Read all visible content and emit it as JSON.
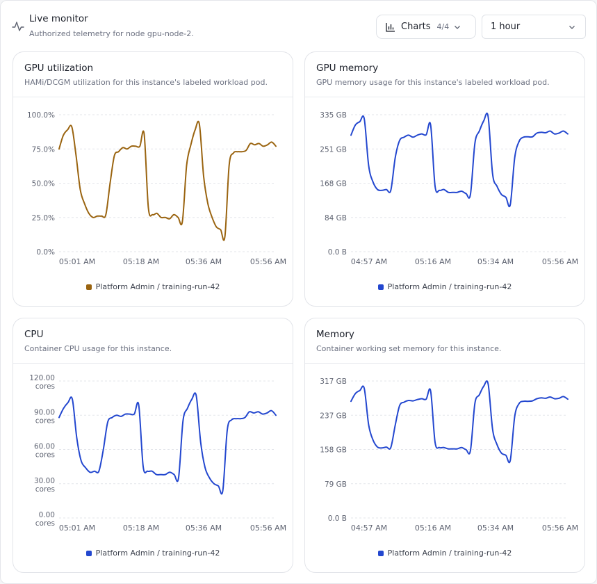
{
  "header": {
    "icon": "activity-icon",
    "title": "Live monitor",
    "subtitle": "Authorized telemetry for node gpu-node-2."
  },
  "toolbar": {
    "charts_label": "Charts",
    "charts_count": "4/4",
    "range_value": "1 hour"
  },
  "cards": [
    {
      "title": "GPU utilization",
      "description": "HAMi/DCGM utilization for this instance's labeled workload pod.",
      "color": "#9a6410",
      "legend": "Platform Admin / training-run-42",
      "chart_data": {
        "type": "line",
        "y_ticks": [
          [
            "100.0%"
          ],
          [
            "75.0%"
          ],
          [
            "50.0%"
          ],
          [
            "25.0%"
          ],
          [
            "0.0%"
          ]
        ],
        "x_ticks": [
          "05:01 AM",
          "05:18 AM",
          "05:36 AM",
          "05:56 AM"
        ],
        "ylim": [
          0,
          100
        ],
        "series": [
          {
            "name": "Platform Admin / training-run-42",
            "values": [
              75,
              85,
              89,
              91,
              70,
              45,
              35,
              28,
              25,
              26,
              26,
              27,
              50,
              70,
              73,
              76,
              75,
              77,
              77,
              77,
              86,
              32,
              27,
              28,
              25,
              25,
              24,
              27,
              25,
              22,
              63,
              78,
              89,
              93,
              55,
              35,
              25,
              18,
              16,
              11,
              63,
              72,
              73,
              73,
              74,
              79,
              78,
              79,
              77,
              78,
              80,
              77
            ]
          }
        ]
      }
    },
    {
      "title": "GPU memory",
      "description": "GPU memory usage for this instance's labeled workload pod.",
      "color": "#2347cf",
      "legend": "Platform Admin / training-run-42",
      "chart_data": {
        "type": "line",
        "y_ticks": [
          [
            "335 GB"
          ],
          [
            "251 GB"
          ],
          [
            "168 GB"
          ],
          [
            "84 GB"
          ],
          [
            "0.0 B"
          ]
        ],
        "x_ticks": [
          "04:57 AM",
          "05:16 AM",
          "05:34 AM",
          "05:56 AM"
        ],
        "ylim": [
          0,
          335
        ],
        "series": [
          {
            "name": "Platform Admin / training-run-42",
            "values": [
              285,
              310,
              318,
              325,
              210,
              170,
              152,
              150,
              152,
              150,
              230,
              272,
              280,
              285,
              280,
              285,
              288,
              286,
              310,
              160,
              150,
              152,
              145,
              145,
              145,
              148,
              142,
              140,
              265,
              295,
              320,
              330,
              190,
              160,
              140,
              133,
              115,
              230,
              270,
              280,
              281,
              281,
              290,
              292,
              291,
              295,
              288,
              290,
              295,
              288
            ]
          }
        ]
      }
    },
    {
      "title": "CPU",
      "description": "Container CPU usage for this instance.",
      "color": "#2347cf",
      "legend": "Platform Admin / training-run-42",
      "chart_data": {
        "type": "line",
        "y_ticks": [
          [
            "120.00",
            "cores"
          ],
          [
            "90.00",
            "cores"
          ],
          [
            "60.00",
            "cores"
          ],
          [
            "30.00",
            "cores"
          ],
          [
            "0.00",
            "cores"
          ]
        ],
        "x_ticks": [
          "05:01 AM",
          "05:18 AM",
          "05:36 AM",
          "05:56 AM"
        ],
        "ylim": [
          0,
          120
        ],
        "series": [
          {
            "name": "Platform Admin / training-run-42",
            "values": [
              88,
              96,
              101,
              104,
              70,
              50,
              44,
              40,
              41,
              41,
              60,
              84,
              88,
              90,
              89,
              91,
              91,
              91,
              99,
              45,
              41,
              41,
              38,
              38,
              38,
              40,
              38,
              35,
              85,
              96,
              104,
              107,
              66,
              44,
              35,
              30,
              28,
              24,
              77,
              86,
              87,
              87,
              88,
              93,
              92,
              93,
              91,
              92,
              94,
              90
            ]
          }
        ]
      }
    },
    {
      "title": "Memory",
      "description": "Container working set memory for this instance.",
      "color": "#2347cf",
      "legend": "Platform Admin / training-run-42",
      "chart_data": {
        "type": "line",
        "y_ticks": [
          [
            "317 GB"
          ],
          [
            "237 GB"
          ],
          [
            "158 GB"
          ],
          [
            "79 GB"
          ],
          [
            "0.0 B"
          ]
        ],
        "x_ticks": [
          "04:57 AM",
          "05:16 AM",
          "05:34 AM",
          "05:56 AM"
        ],
        "ylim": [
          0,
          317
        ],
        "series": [
          {
            "name": "Platform Admin / training-run-42",
            "values": [
              270,
              288,
              295,
              300,
              215,
              180,
              164,
              162,
              164,
              163,
              215,
              260,
              268,
              272,
              271,
              274,
              276,
              275,
              294,
              175,
              163,
              163,
              160,
              160,
              160,
              163,
              158,
              156,
              265,
              285,
              305,
              310,
              205,
              170,
              150,
              145,
              133,
              235,
              265,
              270,
              270,
              271,
              276,
              278,
              277,
              280,
              276,
              277,
              281,
              275
            ]
          }
        ]
      }
    }
  ]
}
